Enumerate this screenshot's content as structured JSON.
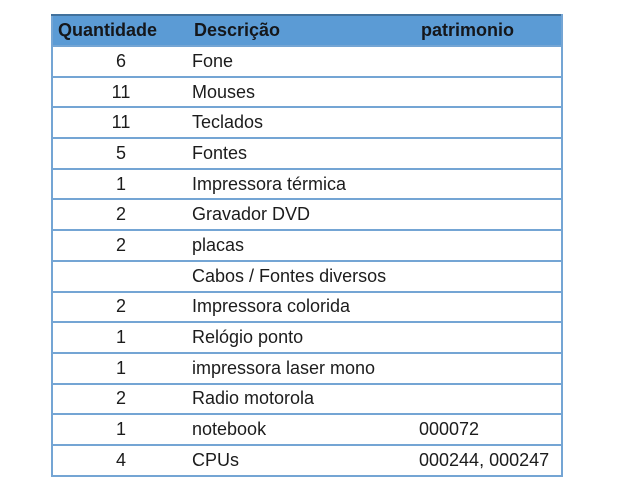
{
  "colors": {
    "header_bg": "#5B9BD5",
    "header_text": "#15171B",
    "body_text": "#1C1C1C",
    "border": "#74A5D4",
    "page_bg": "#FFFFFF"
  },
  "table": {
    "headers": {
      "quantidade": "Quantidade",
      "descricao": "Descrição",
      "patrimonio": "patrimonio"
    },
    "rows": [
      {
        "q": "6",
        "d": "Fone",
        "p": ""
      },
      {
        "q": "11",
        "d": "Mouses",
        "p": ""
      },
      {
        "q": "11",
        "d": "Teclados",
        "p": ""
      },
      {
        "q": "5",
        "d": "Fontes",
        "p": ""
      },
      {
        "q": "1",
        "d": "Impressora térmica",
        "p": ""
      },
      {
        "q": "2",
        "d": "Gravador DVD",
        "p": ""
      },
      {
        "q": "2",
        "d": "placas",
        "p": ""
      },
      {
        "q": "",
        "d": "Cabos / Fontes diversos",
        "p": ""
      },
      {
        "q": "2",
        "d": "Impressora colorida",
        "p": ""
      },
      {
        "q": "1",
        "d": "Relógio ponto",
        "p": ""
      },
      {
        "q": "1",
        "d": "impressora laser mono",
        "p": ""
      },
      {
        "q": "2",
        "d": "Radio motorola",
        "p": ""
      },
      {
        "q": "1",
        "d": "notebook",
        "p": "000072"
      },
      {
        "q": "4",
        "d": "CPUs",
        "p": "000244, 000247"
      }
    ]
  }
}
